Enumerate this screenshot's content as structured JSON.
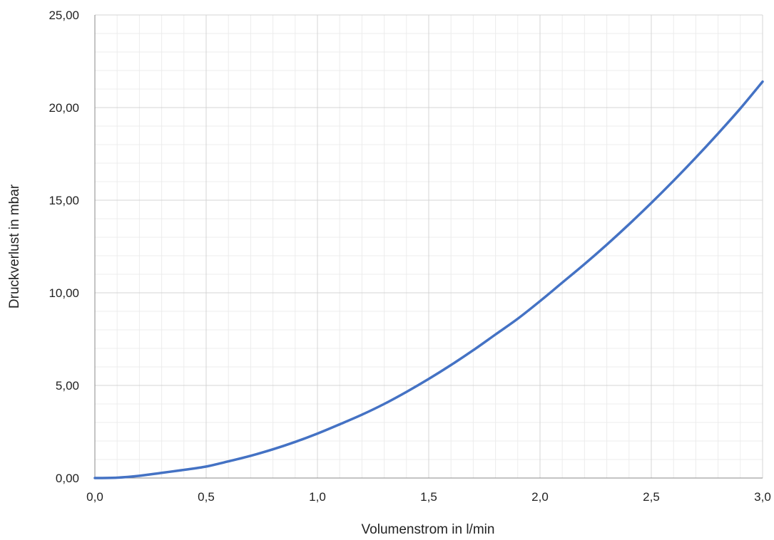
{
  "chart_data": {
    "type": "line",
    "title": "",
    "xlabel": "Volumenstrom in l/min",
    "ylabel": "Druckverlust in mbar",
    "xlim": [
      0,
      3
    ],
    "ylim": [
      0,
      25
    ],
    "x_ticks": [
      "0,0",
      "0,5",
      "1,0",
      "1,5",
      "2,0",
      "2,5",
      "3,0"
    ],
    "y_ticks": [
      "0,00",
      "5,00",
      "10,00",
      "15,00",
      "20,00",
      "25,00"
    ],
    "grid": {
      "major": true,
      "minor": true
    },
    "legend": "none",
    "series": [
      {
        "color": "#4472C4",
        "x": [
          0,
          0.1,
          0.2,
          0.3,
          0.4,
          0.5,
          0.6,
          0.7,
          0.8,
          0.9,
          1.0,
          1.1,
          1.2,
          1.3,
          1.4,
          1.5,
          1.6,
          1.7,
          1.8,
          1.9,
          2.0,
          2.1,
          2.2,
          2.3,
          2.4,
          2.5,
          2.6,
          2.7,
          2.8,
          2.9,
          3.0
        ],
        "y": [
          0.0,
          0.02,
          0.12,
          0.28,
          0.44,
          0.62,
          0.9,
          1.2,
          1.55,
          1.95,
          2.4,
          2.9,
          3.42,
          4.0,
          4.65,
          5.35,
          6.1,
          6.9,
          7.75,
          8.6,
          9.55,
          10.55,
          11.55,
          12.6,
          13.7,
          14.85,
          16.05,
          17.3,
          18.6,
          19.95,
          21.4
        ]
      }
    ]
  }
}
